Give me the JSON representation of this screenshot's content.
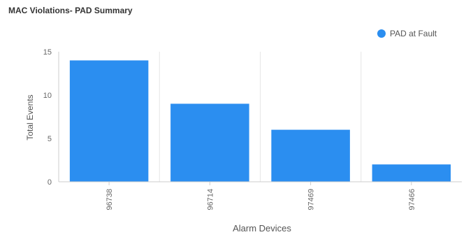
{
  "chart_data": {
    "type": "bar",
    "title": "MAC Violations- PAD Summary",
    "xlabel": "Alarm Devices",
    "ylabel": "Total Events",
    "categories": [
      "96738",
      "96714",
      "97469",
      "97466"
    ],
    "series": [
      {
        "name": "PAD at Fault",
        "values": [
          14,
          9,
          6,
          2
        ]
      }
    ],
    "ylim": [
      0,
      15
    ],
    "yticks": [
      0,
      5,
      10,
      15
    ],
    "grid": "vertical dividers between categories",
    "legend": "top-right",
    "colors": {
      "bar": "#2b8ef0",
      "axis": "#cccccc",
      "grid": "#e6e6e6"
    }
  }
}
